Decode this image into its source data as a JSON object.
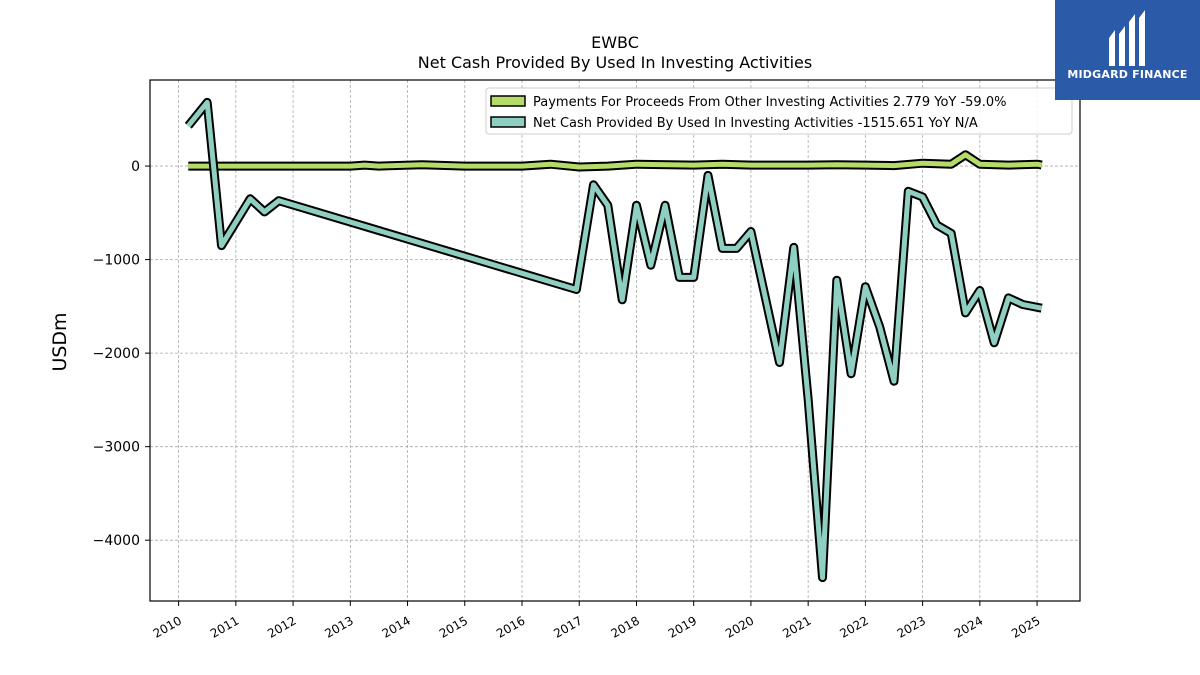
{
  "chart_data": {
    "type": "line",
    "title": "EWBC",
    "subtitle": "Net Cash Provided By Used In Investing Activities",
    "xlabel": "",
    "ylabel": "USDm",
    "xlim": [
      2009.5,
      2025.75
    ],
    "ylim": [
      -4650,
      920
    ],
    "x_ticks": [
      "2010",
      "2011",
      "2012",
      "2013",
      "2014",
      "2015",
      "2016",
      "2017",
      "2018",
      "2019",
      "2020",
      "2021",
      "2022",
      "2023",
      "2024",
      "2025"
    ],
    "y_ticks": [
      {
        "value": 0,
        "label": "0"
      },
      {
        "value": -1000,
        "label": "−1000"
      },
      {
        "value": -2000,
        "label": "−2000"
      },
      {
        "value": -3000,
        "label": "−3000"
      },
      {
        "value": -4000,
        "label": "−4000"
      }
    ],
    "grid": true,
    "legend_position": "top-right",
    "series": [
      {
        "name": "Payments For Proceeds From Other Investing Activities  2.779 YoY -59.0%",
        "color": "#b5db6a",
        "x": [
          2010.17,
          2011.0,
          2012.0,
          2012.75,
          2013.0,
          2013.25,
          2013.5,
          2014.25,
          2015.0,
          2016.0,
          2016.5,
          2017.0,
          2017.5,
          2018.0,
          2019.0,
          2019.5,
          2020.0,
          2020.5,
          2021.0,
          2021.5,
          2022.0,
          2022.5,
          2023.0,
          2023.5,
          2023.75,
          2024.0,
          2024.5,
          2025.0,
          2025.08
        ],
        "y": [
          0,
          0,
          0,
          0,
          0,
          10,
          0,
          15,
          0,
          0,
          20,
          -10,
          0,
          20,
          10,
          20,
          10,
          10,
          10,
          15,
          10,
          5,
          30,
          20,
          120,
          20,
          10,
          20,
          10
        ]
      },
      {
        "name": "Net Cash Provided By Used In Investing Activities  -1515.651 YoY N/A",
        "color": "#8ecfc1",
        "x": [
          2010.17,
          2010.5,
          2010.75,
          2011.25,
          2011.5,
          2011.75,
          2016.95,
          2017.25,
          2017.5,
          2017.75,
          2018.0,
          2018.25,
          2018.5,
          2018.75,
          2019.0,
          2019.25,
          2019.5,
          2019.75,
          2020.0,
          2020.5,
          2020.75,
          2021.0,
          2021.25,
          2021.5,
          2021.75,
          2022.0,
          2022.25,
          2022.5,
          2022.75,
          2023.0,
          2023.25,
          2023.5,
          2023.75,
          2024.0,
          2024.25,
          2024.5,
          2024.75,
          2025.08
        ],
        "y": [
          430,
          680,
          -850,
          -350,
          -490,
          -370,
          -1320,
          -200,
          -420,
          -1430,
          -420,
          -1060,
          -420,
          -1190,
          -1190,
          -100,
          -880,
          -880,
          -700,
          -2100,
          -870,
          -2500,
          -4400,
          -1220,
          -2220,
          -1290,
          -1720,
          -2300,
          -270,
          -330,
          -630,
          -720,
          -1570,
          -1330,
          -1890,
          -1410,
          -1480,
          -1520
        ]
      }
    ]
  },
  "brand": {
    "name": "MIDGARD FINANCE",
    "color": "#2a5aa8"
  }
}
